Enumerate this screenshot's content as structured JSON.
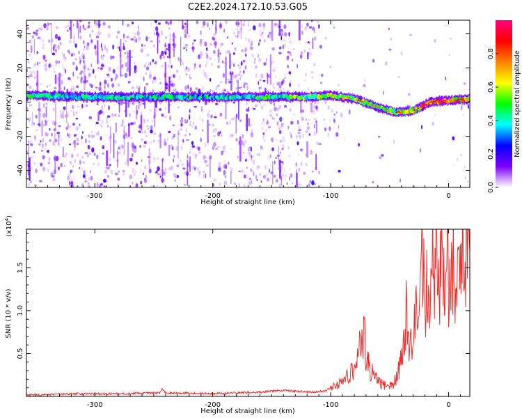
{
  "title": "C2E2.2024.172.10.53.G05",
  "chart_data": [
    {
      "type": "heatmap",
      "xlabel": "Height of straight line (km)",
      "ylabel": "Frequency (Hz)",
      "xlim": [
        -358,
        18
      ],
      "ylim": [
        -50,
        48
      ],
      "x_ticks": [
        -300,
        -200,
        -100,
        0
      ],
      "y_ticks": [
        -40,
        -20,
        0,
        20,
        40
      ],
      "colorbar": {
        "label": "Normalized spectral amplitude",
        "range": [
          0.0,
          1.0
        ],
        "ticks": [
          0.0,
          0.2,
          0.4,
          0.6,
          0.8
        ],
        "tick_labels": [
          "0.0",
          "0.2",
          "0.4",
          "0.6",
          "0.8"
        ],
        "colormap": [
          "#ffffff",
          "#7f00ff",
          "#0000ff",
          "#00ffff",
          "#00ff00",
          "#ffff00",
          "#ff8000",
          "#ff0000",
          "#ff0080"
        ]
      },
      "ridge": {
        "x": [
          -358,
          -300,
          -250,
          -200,
          -150,
          -120,
          -100,
          -80,
          -60,
          -45,
          -30,
          -15,
          0,
          18
        ],
        "frequency": [
          4,
          3,
          3,
          3,
          3,
          3,
          4,
          2,
          -3,
          -6,
          -5,
          0,
          1,
          2
        ],
        "amplitude": [
          0.45,
          0.45,
          0.45,
          0.45,
          0.5,
          0.55,
          0.65,
          0.6,
          0.55,
          0.65,
          0.75,
          0.9,
          0.85,
          0.7
        ]
      },
      "grid": false
    },
    {
      "type": "line",
      "xlabel": "Height of straight line (km)",
      "ylabel": "SNR (10 * v/v)",
      "y_multiplier": "(x10",
      "y_multiplier_exp": "4",
      "y_multiplier_close": ")",
      "xlim": [
        -358,
        18
      ],
      "ylim": [
        0,
        1.95
      ],
      "x_ticks": [
        -300,
        -200,
        -100,
        0
      ],
      "y_ticks": [
        0.5,
        1.0,
        1.5
      ],
      "y_tick_labels": [
        "0.5",
        "1.0",
        "1.5"
      ],
      "color": "#e8302c",
      "x": [
        -358,
        -340,
        -320,
        -300,
        -280,
        -260,
        -245,
        -243,
        -240,
        -220,
        -200,
        -180,
        -160,
        -140,
        -120,
        -105,
        -98,
        -90,
        -84,
        -80,
        -76,
        -74,
        -72,
        -70,
        -66,
        -62,
        -58,
        -54,
        -50,
        -46,
        -42,
        -39,
        -36,
        -34,
        -32,
        -30,
        -28,
        -26,
        -24,
        -22,
        -20,
        -18,
        -16,
        -14,
        -12,
        -10,
        -8,
        -6,
        -4,
        -2,
        0,
        2,
        4,
        6,
        8,
        10,
        12,
        14,
        16,
        18
      ],
      "y": [
        0.02,
        0.02,
        0.03,
        0.03,
        0.03,
        0.04,
        0.04,
        0.09,
        0.04,
        0.04,
        0.03,
        0.04,
        0.05,
        0.07,
        0.05,
        0.06,
        0.12,
        0.18,
        0.25,
        0.32,
        0.5,
        0.62,
        0.85,
        0.45,
        0.3,
        0.22,
        0.15,
        0.13,
        0.12,
        0.16,
        0.3,
        0.55,
        0.95,
        0.6,
        1.0,
        0.5,
        1.1,
        0.6,
        1.4,
        1.8,
        0.8,
        1.6,
        0.9,
        1.85,
        1.3,
        1.7,
        1.0,
        1.75,
        1.2,
        1.5,
        1.4,
        1.3,
        1.55,
        1.45,
        1.6,
        1.5,
        1.95,
        1.45,
        1.6,
        1.7
      ]
    }
  ]
}
